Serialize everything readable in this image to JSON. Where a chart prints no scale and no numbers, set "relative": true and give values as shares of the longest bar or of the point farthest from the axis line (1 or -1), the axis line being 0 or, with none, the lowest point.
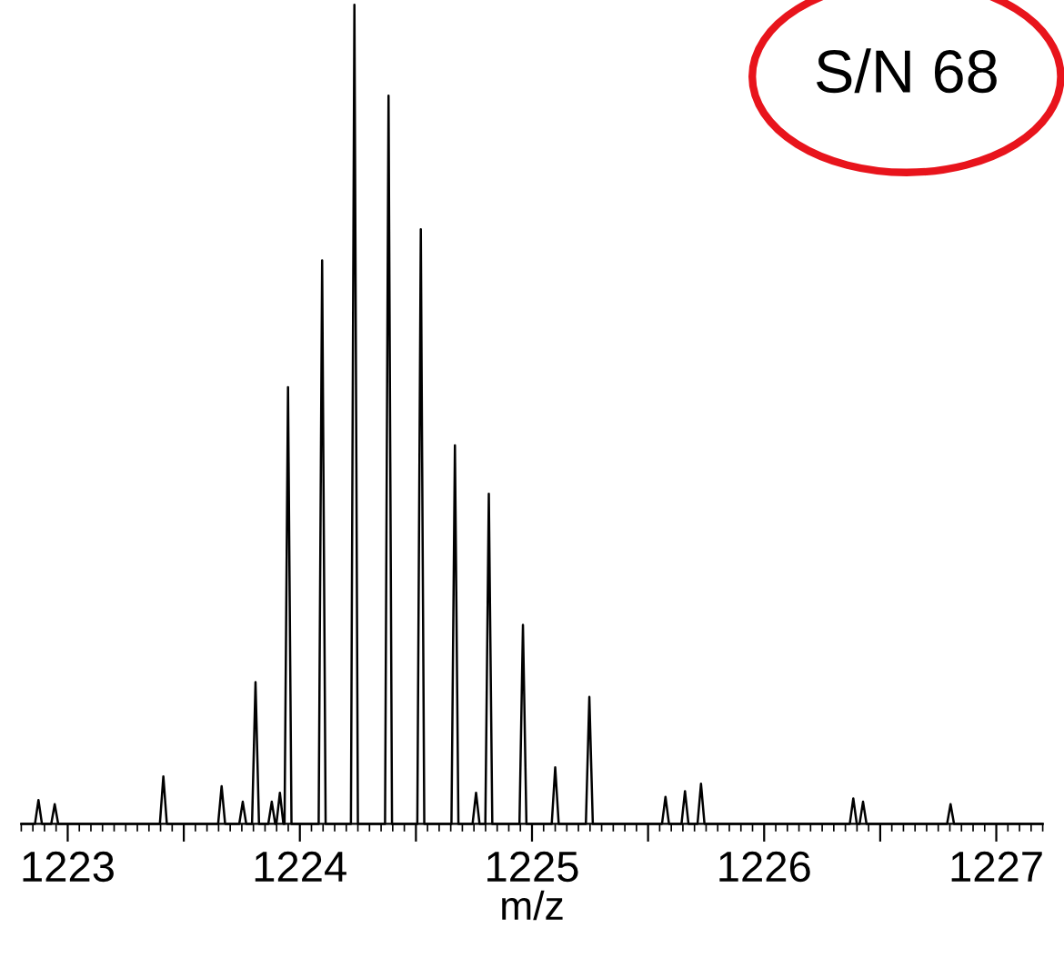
{
  "chart_data": {
    "type": "line",
    "relative": true,
    "xlabel": "m/z",
    "annotations": [
      "S/N 68"
    ],
    "xlim": [
      1222.8,
      1227.2
    ],
    "xticks": [
      1223,
      {
        "value": 1223.5,
        "label": null
      },
      1224,
      {
        "value": 1224.5,
        "label": null
      },
      1225,
      {
        "value": 1225.5,
        "label": null
      },
      1226,
      {
        "value": 1226.5,
        "label": null
      },
      1227
    ],
    "tick_labels": "x",
    "grid": false,
    "legend": false,
    "marker": "none",
    "line_style": "solid",
    "series": [
      {
        "color": "#000000",
        "x": [
          1222.8,
          1222.859,
          1222.874,
          1222.889,
          1222.929,
          1222.944,
          1222.959,
          1223.397,
          1223.412,
          1223.427,
          1223.648,
          1223.663,
          1223.678,
          1223.739,
          1223.754,
          1223.769,
          1223.794,
          1223.809,
          1223.824,
          1223.864,
          1223.879,
          1223.894,
          1223.899,
          1223.914,
          1223.929,
          1223.934,
          1223.949,
          1223.964,
          1224.081,
          1224.096,
          1224.111,
          1224.22,
          1224.235,
          1224.25,
          1224.367,
          1224.382,
          1224.397,
          1224.506,
          1224.521,
          1224.536,
          1224.653,
          1224.668,
          1224.683,
          1224.744,
          1224.759,
          1224.774,
          1224.799,
          1224.814,
          1224.829,
          1224.946,
          1224.961,
          1224.976,
          1225.085,
          1225.1,
          1225.115,
          1225.232,
          1225.247,
          1225.262,
          1225.56,
          1225.575,
          1225.59,
          1225.644,
          1225.659,
          1225.674,
          1225.713,
          1225.728,
          1225.743,
          1226.369,
          1226.384,
          1226.399,
          1226.411,
          1226.426,
          1226.441,
          1226.788,
          1226.803,
          1226.818,
          1227.2
        ],
        "values": [
          0,
          0,
          0.029,
          0,
          0,
          0.024,
          0,
          0,
          0.058,
          0,
          0,
          0.046,
          0,
          0,
          0.027,
          0,
          0,
          0.173,
          0,
          0,
          0.027,
          0,
          0,
          0.038,
          0,
          0,
          0.533,
          0,
          0,
          0.688,
          0,
          0,
          1,
          0,
          0,
          0.889,
          0,
          0,
          0.726,
          0,
          0,
          0.462,
          0,
          0,
          0.038,
          0,
          0,
          0.403,
          0,
          0,
          0.243,
          0,
          0,
          0.069,
          0,
          0,
          0.155,
          0,
          0,
          0.033,
          0,
          0,
          0.04,
          0,
          0,
          0.049,
          0,
          0,
          0.031,
          0,
          0,
          0.027,
          0,
          0,
          0.024,
          0,
          0
        ]
      }
    ]
  }
}
